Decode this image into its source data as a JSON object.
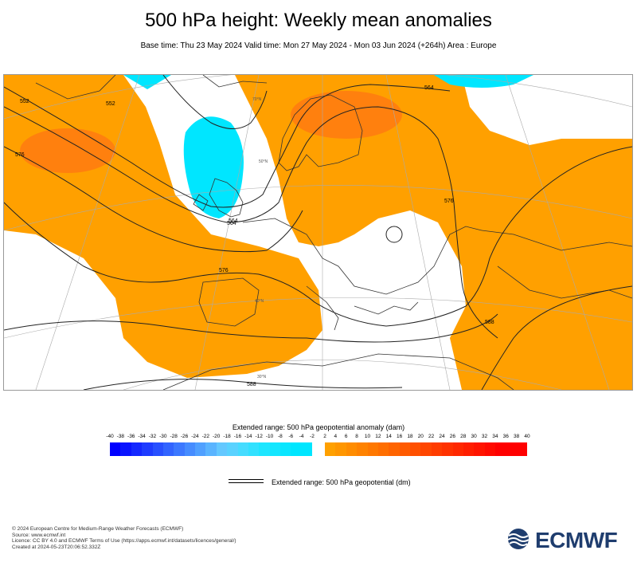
{
  "header": {
    "title": "500 hPa height: Weekly mean anomalies",
    "subtitle": "Base time: Thu 23 May 2024 Valid time: Mon 27 May 2024 - Mon 03 Jun 2024 (+264h) Area : Europe"
  },
  "map": {
    "contour_labels": [
      "552",
      "564",
      "564",
      "576",
      "552",
      "564",
      "576",
      "576",
      "588",
      "588"
    ],
    "lat_labels": [
      "70°N",
      "50°N",
      "40°N",
      "30°N"
    ],
    "colors": {
      "positive": "#ff9b00",
      "positive_strong": "#ff6a0a",
      "negative": "#00e5ff",
      "land_outline": "#333333",
      "contour": "#222222",
      "grid": "#aaaaaa"
    }
  },
  "colorbar": {
    "title": "Extended range: 500 hPa geopotential anomaly (dam)",
    "ticks": [
      "-40",
      "-38",
      "-36",
      "-34",
      "-32",
      "-30",
      "-28",
      "-26",
      "-24",
      "-22",
      "-20",
      "-18",
      "-16",
      "-14",
      "-12",
      "-10",
      "-8",
      "-6",
      "-4",
      "-2",
      "2",
      "4",
      "6",
      "8",
      "10",
      "12",
      "14",
      "16",
      "18",
      "20",
      "22",
      "24",
      "26",
      "28",
      "30",
      "32",
      "34",
      "36",
      "38",
      "40"
    ],
    "negative_colors": [
      "#0000ff",
      "#0a14ff",
      "#1428ff",
      "#1e3cff",
      "#2850ff",
      "#3264ff",
      "#3c78ff",
      "#468cff",
      "#50a0ff",
      "#5ab4ff",
      "#64c8ff",
      "#5ad2ff",
      "#46dcff",
      "#32e1ff",
      "#1ee6ff",
      "#14e6ff",
      "#0ae6ff",
      "#00e6ff",
      "#00e6ff"
    ],
    "positive_colors": [
      "#ffa000",
      "#ff9600",
      "#ff8c00",
      "#ff8200",
      "#ff7800",
      "#ff6e00",
      "#ff6400",
      "#ff5a00",
      "#ff5000",
      "#ff4600",
      "#ff3c00",
      "#ff3200",
      "#ff2800",
      "#ff1e00",
      "#ff1400",
      "#ff0a00",
      "#ff0000",
      "#ff0000",
      "#ff0000"
    ]
  },
  "legend": {
    "label": "Extended range: 500 hPa geopotential (dm)"
  },
  "footer": {
    "line1": "© 2024 European Centre for Medium-Range Weather Forecasts (ECMWF)",
    "line2": "Source: www.ecmwf.int",
    "line3": "Licence: CC BY 4.0 and ECMWF Terms of Use (https://apps.ecmwf.int/datasets/licences/general/)",
    "line4": "Created at 2024-05-23T20:06:52.332Z"
  },
  "logo": {
    "text": "ECMWF",
    "color": "#1f3d6e"
  }
}
